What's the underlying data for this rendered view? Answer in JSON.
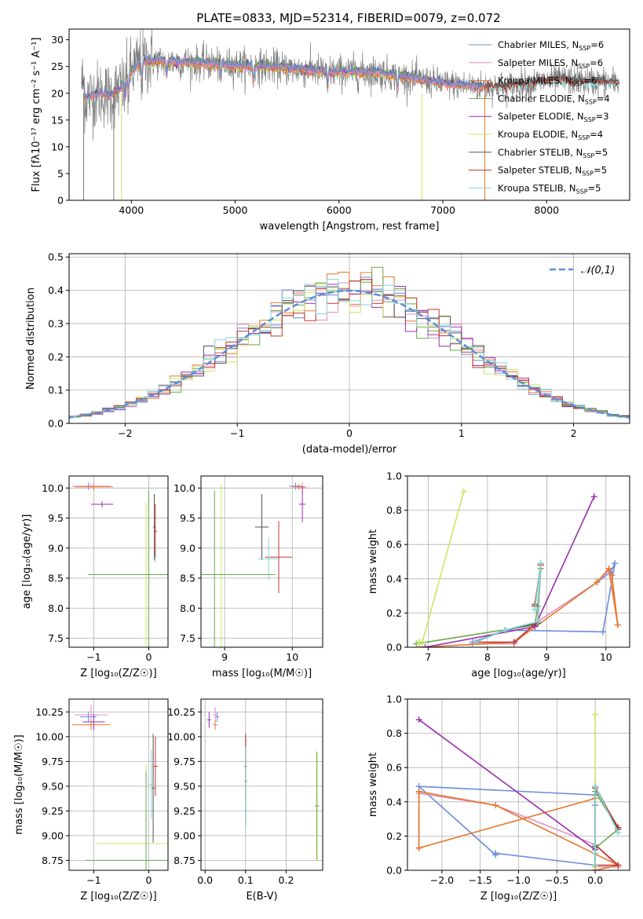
{
  "figure_title": "PLATE=0833, MJD=52314, FIBERID=0079, z=0.072",
  "colors": {
    "chabrier_miles": "#6b8ed9",
    "salpeter_miles": "#e08ec0",
    "kroupa_miles": "#e8772e",
    "chabrier_elodie": "#6aa84f",
    "salpeter_elodie": "#9b2fae",
    "kroupa_elodie": "#c8e860",
    "chabrier_stelib": "#555555",
    "salpeter_stelib": "#c0392b",
    "kroupa_stelib": "#85d6d6",
    "spectrum_data": "#808080",
    "normal_curve": "#5b8fd9",
    "grid": "#b0b0b0"
  },
  "chart_data": [
    {
      "id": "spectrum",
      "type": "line",
      "title": "PLATE=0833, MJD=52314, FIBERID=0079, z=0.072",
      "xlabel": "wavelength [Angstrom, rest frame]",
      "ylabel": "Flux [fλ10⁻¹⁷ erg cm⁻² s⁻¹ A⁻¹]",
      "xlim": [
        3400,
        8800
      ],
      "ylim": [
        0,
        32
      ],
      "xticks": [
        4000,
        5000,
        6000,
        7000,
        8000
      ],
      "yticks": [
        0,
        5,
        10,
        15,
        20,
        25,
        30
      ],
      "grid": false,
      "legend_position": "top-right",
      "legend": [
        "Chabrier MILES, N_SSP=6",
        "Salpeter MILES, N_SSP=6",
        "Kroupa MILES, N_SSP=6",
        "Chabrier ELODIE, N_SSP=4",
        "Salpeter ELODIE, N_SSP=3",
        "Kroupa ELODIE, N_SSP=4",
        "Chabrier STELIB, N_SSP=5",
        "Salpeter STELIB, N_SSP=5",
        "Kroupa STELIB, N_SSP=5"
      ],
      "continuum": {
        "x": [
          3550,
          3700,
          3800,
          3900,
          4000,
          4100,
          4300,
          4500,
          4800,
          5000,
          5300,
          5600,
          5900,
          6100,
          6400,
          6600,
          6800,
          7000,
          7200,
          7400,
          7600,
          7800,
          8000,
          8200,
          8400,
          8700
        ],
        "y": [
          19,
          20,
          19.5,
          21,
          24,
          26,
          26,
          25.8,
          25.5,
          25.2,
          25,
          24.5,
          24,
          24,
          23.8,
          23.2,
          22.5,
          21.8,
          21.5,
          21.2,
          21.3,
          21.8,
          22.3,
          22.5,
          22.2,
          22
        ]
      }
    },
    {
      "id": "residuals",
      "type": "bar",
      "xlabel": "(data-model)/error",
      "ylabel": "Normed distribution",
      "xlim": [
        -2.5,
        2.5
      ],
      "ylim": [
        0,
        0.51
      ],
      "xticks": [
        -2,
        -1,
        0,
        1,
        2
      ],
      "yticks": [
        0.0,
        0.1,
        0.2,
        0.3,
        0.4,
        0.5
      ],
      "grid": true,
      "legend_position": "top-right",
      "legend": [
        "𝒩(0,1)"
      ],
      "bin_width": 0.1
    },
    {
      "id": "age_vs_Z",
      "type": "scatter",
      "xlabel": "Z [log₁₀(Z/Z☉)]",
      "ylabel": "age  [log₁₀(age/yr)]",
      "xlim": [
        -1.45,
        0.35
      ],
      "ylim": [
        7.35,
        10.2
      ],
      "xticks": [
        -1,
        0
      ],
      "yticks": [
        7.5,
        8.0,
        8.5,
        9.0,
        9.5,
        10.0
      ],
      "grid": true
    },
    {
      "id": "age_vs_mass",
      "type": "scatter",
      "xlabel": "mass [log₁₀(M/M☉)]",
      "ylabel": "",
      "xlim": [
        8.65,
        10.45
      ],
      "ylim": [
        7.35,
        10.2
      ],
      "xticks": [
        9,
        10
      ],
      "yticks": [
        7.5,
        8.0,
        8.5,
        9.0,
        9.5,
        10.0
      ],
      "grid": true
    },
    {
      "id": "weight_vs_age",
      "type": "line",
      "xlabel": "age  [log₁₀(age/yr)]",
      "ylabel": "mass weight",
      "xlim": [
        6.65,
        10.4
      ],
      "ylim": [
        0,
        1.0
      ],
      "xticks": [
        7,
        8,
        9,
        10
      ],
      "yticks": [
        0.0,
        0.2,
        0.4,
        0.6,
        0.8,
        1.0
      ],
      "grid": true
    },
    {
      "id": "mass_vs_Z",
      "type": "scatter",
      "xlabel": "Z [log₁₀(Z/Z☉)]",
      "ylabel": "mass [log₁₀(M/M☉)]",
      "xlim": [
        -1.45,
        0.35
      ],
      "ylim": [
        8.65,
        10.38
      ],
      "xticks": [
        -1,
        0
      ],
      "yticks": [
        8.75,
        9.0,
        9.25,
        9.5,
        9.75,
        10.0,
        10.25
      ],
      "grid": true
    },
    {
      "id": "mass_vs_ebv",
      "type": "scatter",
      "xlabel": "E(B-V)",
      "ylabel": "",
      "xlim": [
        -0.01,
        0.29
      ],
      "ylim": [
        8.65,
        10.38
      ],
      "xticks": [
        0.0,
        0.1,
        0.2
      ],
      "yticks": [
        8.75,
        9.0,
        9.25,
        9.5,
        9.75,
        10.0,
        10.25
      ],
      "grid": true
    },
    {
      "id": "weight_vs_Z",
      "type": "line",
      "xlabel": "Z [log₁₀(Z/Z☉)]",
      "ylabel": "mass weight",
      "xlim": [
        -2.45,
        0.45
      ],
      "ylim": [
        0,
        1.0
      ],
      "xticks": [
        -2.0,
        -1.5,
        -1.0,
        -0.5,
        0.0
      ],
      "yticks": [
        0.0,
        0.2,
        0.4,
        0.6,
        0.8,
        1.0
      ],
      "grid": true
    }
  ],
  "model_series": [
    {
      "key": "chabrier_miles",
      "name": "Chabrier MILES, N_SSP=6",
      "ages": [
        7.75,
        8.3,
        9.95,
        10.15,
        10.08,
        9.85
      ],
      "weights": [
        0.03,
        0.1,
        0.09,
        0.49,
        0.44,
        0.38
      ],
      "Zs": [
        0.0,
        -1.3,
        -1.3,
        -2.3,
        0.0,
        0.0
      ]
    },
    {
      "key": "salpeter_miles",
      "name": "Salpeter MILES, N_SSP=6",
      "ages": [
        7.75,
        8.45,
        8.85,
        9.85,
        10.05,
        10.2
      ],
      "weights": [
        0.02,
        0.02,
        0.15,
        0.38,
        0.45,
        0.13
      ],
      "Zs": [
        0.0,
        0.3,
        0.0,
        -1.3,
        -2.3,
        -2.3
      ]
    },
    {
      "key": "kroupa_miles",
      "name": "Kroupa MILES, N_SSP=6",
      "ages": [
        6.85,
        8.45,
        9.85,
        10.05,
        10.2,
        10.1
      ],
      "weights": [
        0.0,
        0.03,
        0.38,
        0.46,
        0.13,
        0.42
      ],
      "Zs": [
        0.0,
        0.3,
        -1.3,
        -2.3,
        -2.3,
        0.0
      ]
    },
    {
      "key": "chabrier_elodie",
      "name": "Chabrier ELODIE, N_SSP=4",
      "ages": [
        6.8,
        8.8,
        8.85,
        8.9
      ],
      "weights": [
        0.02,
        0.13,
        0.24,
        0.46
      ],
      "Zs": [
        0.0,
        0.0,
        0.3,
        0.0
      ]
    },
    {
      "key": "salpeter_elodie",
      "name": "Salpeter ELODIE, N_SSP=3",
      "ages": [
        6.95,
        8.8,
        9.8
      ],
      "weights": [
        0.0,
        0.12,
        0.88
      ],
      "Zs": [
        0.0,
        0.0,
        -2.3
      ]
    },
    {
      "key": "kroupa_elodie",
      "name": "Kroupa ELODIE, N_SSP=4",
      "ages": [
        6.85,
        6.85,
        6.9,
        7.6
      ],
      "weights": [
        0.02,
        0.03,
        0.03,
        0.91
      ],
      "Zs": [
        0.0,
        0.0,
        0.0,
        0.0
      ]
    },
    {
      "key": "chabrier_stelib",
      "name": "Chabrier STELIB, N_SSP=5",
      "ages": [
        7.8,
        8.3,
        8.85,
        8.9,
        8.8
      ],
      "weights": [
        0.03,
        0.1,
        0.14,
        0.49,
        0.24
      ],
      "Zs": [
        0.0,
        0.0,
        0.0,
        0.0,
        0.3
      ]
    },
    {
      "key": "salpeter_stelib",
      "name": "Salpeter STELIB, N_SSP=5",
      "ages": [
        7.8,
        8.45,
        8.85,
        8.9,
        8.8
      ],
      "weights": [
        0.03,
        0.03,
        0.15,
        0.48,
        0.25
      ],
      "Zs": [
        0.0,
        0.3,
        0.0,
        0.0,
        0.3
      ]
    },
    {
      "key": "kroupa_stelib",
      "name": "Kroupa STELIB, N_SSP=5",
      "ages": [
        7.8,
        8.3,
        8.85,
        8.9,
        8.8
      ],
      "weights": [
        0.03,
        0.1,
        0.15,
        0.49,
        0.22
      ],
      "Zs": [
        0.0,
        0.0,
        0.0,
        0.0,
        0.3
      ]
    }
  ],
  "crosshairs": {
    "age_vs_Z": [
      {
        "c": "chabrier_miles",
        "x": -1.1,
        "xe": 0.15,
        "y": 10.03,
        "ye": 0.06
      },
      {
        "c": "salpeter_miles",
        "x": -1.05,
        "xe": 0.35,
        "y": 10.03,
        "ye": 0.04
      },
      {
        "c": "kroupa_miles",
        "x": -1.0,
        "xe": 0.35,
        "y": 10.02,
        "ye": 0.06
      },
      {
        "c": "salpeter_elodie",
        "x": -0.85,
        "xe": 0.2,
        "y": 9.73,
        "ye": 0.05
      },
      {
        "c": "kroupa_elodie",
        "x": -0.05,
        "xe": 1.0,
        "y": 8.56,
        "ye": 1.2
      },
      {
        "c": "chabrier_elodie",
        "x": 0.0,
        "xe": 1.1,
        "y": 8.56,
        "ye": 1.4
      },
      {
        "c": "chabrier_stelib",
        "x": 0.1,
        "xe": 0.02,
        "y": 9.35,
        "ye": 0.55
      },
      {
        "c": "salpeter_stelib",
        "x": 0.12,
        "xe": 0.03,
        "y": 9.28,
        "ye": 0.45
      },
      {
        "c": "kroupa_stelib",
        "x": 0.11,
        "xe": 0.03,
        "y": 8.82,
        "ye": 0.06
      }
    ],
    "age_vs_mass": [
      {
        "c": "chabrier_miles",
        "x": 10.05,
        "xe": 0.1,
        "y": 10.03,
        "ye": 0.06
      },
      {
        "c": "salpeter_miles",
        "x": 10.15,
        "xe": 0.1,
        "y": 10.0,
        "ye": 0.1
      },
      {
        "c": "kroupa_miles",
        "x": 10.1,
        "xe": 0.1,
        "y": 10.02,
        "ye": 0.05
      },
      {
        "c": "salpeter_elodie",
        "x": 10.15,
        "xe": 0.05,
        "y": 9.73,
        "ye": 0.3
      },
      {
        "c": "kroupa_elodie",
        "x": 8.95,
        "xe": 0.1,
        "y": 8.56,
        "ye": 1.5
      },
      {
        "c": "chabrier_elodie",
        "x": 8.85,
        "xe": 0.9,
        "y": 8.56,
        "ye": 1.4
      },
      {
        "c": "chabrier_stelib",
        "x": 9.55,
        "xe": 0.1,
        "y": 9.35,
        "ye": 0.55
      },
      {
        "c": "salpeter_stelib",
        "x": 9.8,
        "xe": 0.2,
        "y": 8.85,
        "ye": 0.6
      },
      {
        "c": "kroupa_stelib",
        "x": 9.65,
        "xe": 0.15,
        "y": 8.82,
        "ye": 0.35
      }
    ],
    "mass_vs_Z": [
      {
        "c": "chabrier_miles",
        "x": -1.1,
        "xe": 0.15,
        "y": 10.2,
        "ye": 0.05
      },
      {
        "c": "salpeter_miles",
        "x": -1.05,
        "xe": 0.3,
        "y": 10.22,
        "ye": 0.1
      },
      {
        "c": "kroupa_miles",
        "x": -1.05,
        "xe": 0.35,
        "y": 10.12,
        "ye": 0.05
      },
      {
        "c": "salpeter_elodie",
        "x": -1.0,
        "xe": 0.2,
        "y": 10.15,
        "ye": 0.08
      },
      {
        "c": "kroupa_elodie",
        "x": -0.05,
        "xe": 0.9,
        "y": 8.92,
        "ye": 0.8
      },
      {
        "c": "chabrier_elodie",
        "x": -0.05,
        "xe": 1.1,
        "y": 8.75,
        "ye": 0.9
      },
      {
        "c": "chabrier_stelib",
        "x": 0.08,
        "xe": 0.03,
        "y": 9.48,
        "ye": 0.55
      },
      {
        "c": "salpeter_stelib",
        "x": 0.12,
        "xe": 0.05,
        "y": 9.7,
        "ye": 0.3
      },
      {
        "c": "kroupa_stelib",
        "x": 0.05,
        "xe": 0.05,
        "y": 9.52,
        "ye": 0.35
      }
    ],
    "mass_vs_ebv": [
      {
        "c": "chabrier_miles",
        "x": 0.03,
        "xe": 0.005,
        "y": 10.2,
        "ye": 0.05
      },
      {
        "c": "salpeter_miles",
        "x": 0.025,
        "xe": 0.005,
        "y": 10.22,
        "ye": 0.08
      },
      {
        "c": "kroupa_miles",
        "x": 0.025,
        "xe": 0.005,
        "y": 10.12,
        "ye": 0.05
      },
      {
        "c": "salpeter_elodie",
        "x": 0.01,
        "xe": 0.005,
        "y": 10.17,
        "ye": 0.08
      },
      {
        "c": "kroupa_elodie",
        "x": 0.275,
        "xe": 0.005,
        "y": 9.3,
        "ye": 0.55
      },
      {
        "c": "chabrier_elodie",
        "x": 0.276,
        "xe": 0.005,
        "y": 9.3,
        "ye": 0.55
      },
      {
        "c": "chabrier_stelib",
        "x": 0.1,
        "xe": 0.003,
        "y": 9.55,
        "ye": 0.45
      },
      {
        "c": "salpeter_stelib",
        "x": 0.1,
        "xe": 0.003,
        "y": 9.7,
        "ye": 0.33
      },
      {
        "c": "kroupa_stelib",
        "x": 0.1,
        "xe": 0.003,
        "y": 9.5,
        "ye": 0.4
      }
    ]
  }
}
